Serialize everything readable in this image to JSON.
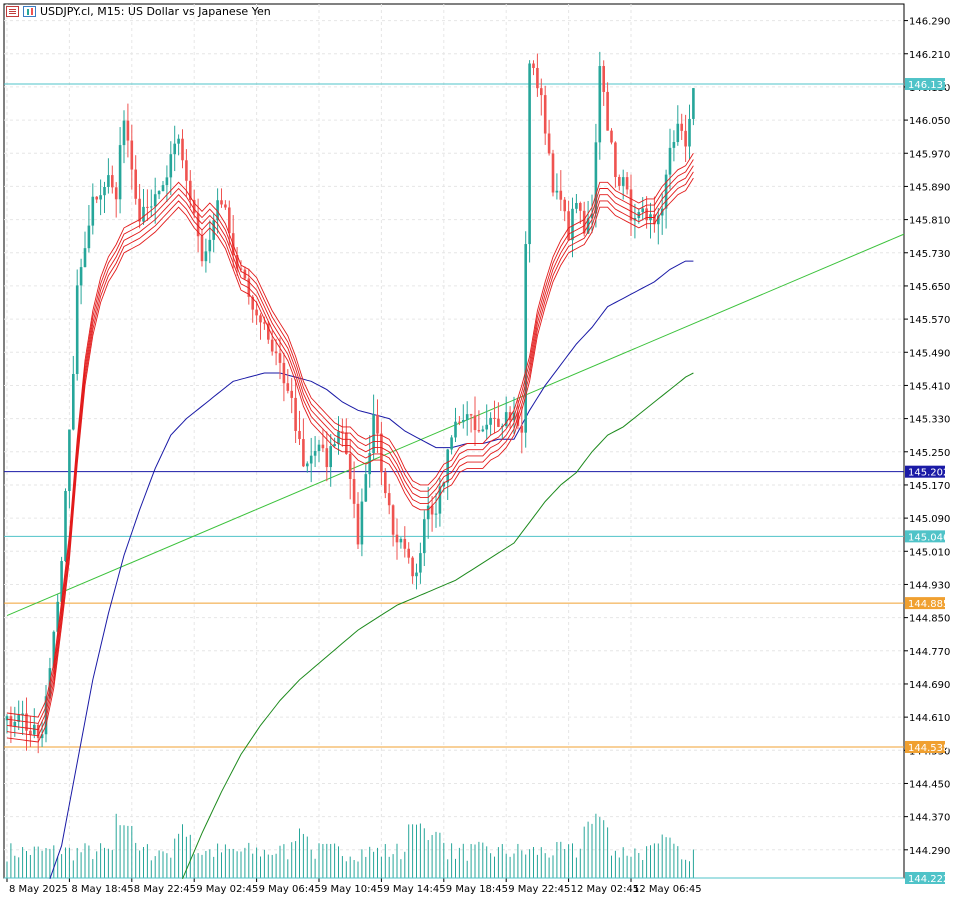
{
  "header": {
    "title": "USDJPY.cl, M15:  US Dollar vs Japanese Yen",
    "menu_icon": "list-icon",
    "chart_type_icon": "candlestick-icon"
  },
  "colors": {
    "up_candle": "#26a69a",
    "down_candle": "#ef5350",
    "ma_ribbon": "#e21b1b",
    "ma_blue": "#1a1aa6",
    "ma_green": "#1d8a1d",
    "trendline": "#3cc23c",
    "hline_cyan": "#4fc3c8",
    "hline_blue": "#1a1aa6",
    "hline_orange": "#f0a030",
    "volume": "#26a69a",
    "grid": "#e6e6e6"
  },
  "chart_data": {
    "type": "candlestick",
    "symbol": "USDJPY.cl",
    "timeframe": "M15",
    "description": "US Dollar vs Japanese Yen",
    "ylim": [
      144.222,
      146.33
    ],
    "y_ticks": [
      "146.290",
      "146.210",
      "146.130",
      "146.050",
      "145.970",
      "145.890",
      "145.810",
      "145.730",
      "145.650",
      "145.570",
      "145.490",
      "145.410",
      "145.330",
      "145.250",
      "145.170",
      "145.090",
      "145.010",
      "144.930",
      "144.850",
      "144.770",
      "144.690",
      "144.610",
      "144.530",
      "144.450",
      "144.370",
      "144.290"
    ],
    "x_ticks": [
      "8 May 2025",
      "8 May 18:45",
      "8 May 22:45",
      "9 May 02:45",
      "9 May 06:45",
      "9 May 10:45",
      "9 May 14:45",
      "9 May 18:45",
      "9 May 22:45",
      "12 May 02:45",
      "12 May 06:45"
    ],
    "price_levels": [
      {
        "label": "146.137",
        "value": 146.137,
        "color": "#4fc3c8"
      },
      {
        "label": "145.202",
        "value": 145.202,
        "color": "#1a1aa6"
      },
      {
        "label": "145.046",
        "value": 145.046,
        "color": "#4fc3c8"
      },
      {
        "label": "144.885",
        "value": 144.885,
        "color": "#f0a030"
      },
      {
        "label": "144.538",
        "value": 144.538,
        "color": "#f0a030"
      },
      {
        "label": "144.222",
        "value": 144.222,
        "color": "#4fc3c8"
      }
    ],
    "close_anchors": [
      [
        0,
        144.59
      ],
      [
        3,
        144.63
      ],
      [
        6,
        144.57
      ],
      [
        9,
        144.56
      ],
      [
        12,
        144.82
      ],
      [
        14,
        145.0
      ],
      [
        16,
        145.28
      ],
      [
        18,
        145.63
      ],
      [
        20,
        145.76
      ],
      [
        22,
        145.86
      ],
      [
        24,
        145.89
      ],
      [
        26,
        145.91
      ],
      [
        28,
        145.86
      ],
      [
        30,
        146.07
      ],
      [
        32,
        145.94
      ],
      [
        34,
        145.83
      ],
      [
        36,
        145.86
      ],
      [
        38,
        145.85
      ],
      [
        40,
        145.88
      ],
      [
        42,
        145.95
      ],
      [
        44,
        145.99
      ],
      [
        46,
        145.9
      ],
      [
        48,
        145.83
      ],
      [
        50,
        145.71
      ],
      [
        52,
        145.75
      ],
      [
        54,
        145.85
      ],
      [
        56,
        145.82
      ],
      [
        58,
        145.7
      ],
      [
        60,
        145.69
      ],
      [
        62,
        145.6
      ],
      [
        64,
        145.6
      ],
      [
        66,
        145.54
      ],
      [
        68,
        145.48
      ],
      [
        70,
        145.45
      ],
      [
        72,
        145.41
      ],
      [
        74,
        145.32
      ],
      [
        76,
        145.2
      ],
      [
        78,
        145.23
      ],
      [
        80,
        145.27
      ],
      [
        82,
        145.21
      ],
      [
        84,
        145.28
      ],
      [
        86,
        145.3
      ],
      [
        88,
        145.2
      ],
      [
        90,
        145.04
      ],
      [
        92,
        145.18
      ],
      [
        94,
        145.33
      ],
      [
        96,
        145.22
      ],
      [
        98,
        145.1
      ],
      [
        100,
        145.05
      ],
      [
        102,
        145.04
      ],
      [
        104,
        144.93
      ],
      [
        106,
        145.02
      ],
      [
        108,
        145.11
      ],
      [
        110,
        145.12
      ],
      [
        112,
        145.2
      ],
      [
        114,
        145.28
      ],
      [
        116,
        145.34
      ],
      [
        118,
        145.33
      ],
      [
        120,
        145.3
      ],
      [
        122,
        145.29
      ],
      [
        124,
        145.32
      ],
      [
        126,
        145.33
      ],
      [
        128,
        145.34
      ],
      [
        130,
        145.34
      ],
      [
        132,
        145.31
      ],
      [
        134,
        146.18
      ],
      [
        136,
        146.14
      ],
      [
        138,
        146.04
      ],
      [
        140,
        145.88
      ],
      [
        142,
        145.85
      ],
      [
        144,
        145.78
      ],
      [
        146,
        145.85
      ],
      [
        148,
        145.78
      ],
      [
        150,
        145.81
      ],
      [
        152,
        146.16
      ],
      [
        154,
        146.04
      ],
      [
        156,
        145.93
      ],
      [
        158,
        145.89
      ],
      [
        160,
        145.83
      ],
      [
        162,
        145.84
      ],
      [
        164,
        145.79
      ],
      [
        166,
        145.81
      ],
      [
        168,
        145.86
      ],
      [
        170,
        145.98
      ],
      [
        172,
        146.05
      ],
      [
        174,
        146.0
      ],
      [
        176,
        146.15
      ]
    ],
    "ribbon_anchors": [
      [
        0,
        144.59
      ],
      [
        8,
        144.58
      ],
      [
        10,
        144.62
      ],
      [
        12,
        144.71
      ],
      [
        14,
        144.86
      ],
      [
        16,
        145.02
      ],
      [
        18,
        145.25
      ],
      [
        20,
        145.44
      ],
      [
        22,
        145.56
      ],
      [
        24,
        145.64
      ],
      [
        26,
        145.69
      ],
      [
        28,
        145.72
      ],
      [
        30,
        145.76
      ],
      [
        34,
        145.78
      ],
      [
        38,
        145.81
      ],
      [
        40,
        145.83
      ],
      [
        42,
        145.85
      ],
      [
        44,
        145.87
      ],
      [
        46,
        145.85
      ],
      [
        48,
        145.82
      ],
      [
        50,
        145.8
      ],
      [
        52,
        145.82
      ],
      [
        54,
        145.8
      ],
      [
        56,
        145.77
      ],
      [
        58,
        145.72
      ],
      [
        60,
        145.67
      ],
      [
        62,
        145.66
      ],
      [
        64,
        145.64
      ],
      [
        66,
        145.6
      ],
      [
        68,
        145.56
      ],
      [
        70,
        145.53
      ],
      [
        72,
        145.5
      ],
      [
        74,
        145.45
      ],
      [
        76,
        145.39
      ],
      [
        78,
        145.35
      ],
      [
        80,
        145.33
      ],
      [
        82,
        145.31
      ],
      [
        84,
        145.29
      ],
      [
        86,
        145.28
      ],
      [
        88,
        145.28
      ],
      [
        90,
        145.26
      ],
      [
        92,
        145.25
      ],
      [
        94,
        145.26
      ],
      [
        96,
        145.26
      ],
      [
        98,
        145.25
      ],
      [
        100,
        145.22
      ],
      [
        102,
        145.18
      ],
      [
        104,
        145.15
      ],
      [
        106,
        145.14
      ],
      [
        108,
        145.14
      ],
      [
        110,
        145.16
      ],
      [
        112,
        145.19
      ],
      [
        114,
        145.2
      ],
      [
        116,
        145.23
      ],
      [
        118,
        145.24
      ],
      [
        120,
        145.24
      ],
      [
        122,
        145.24
      ],
      [
        124,
        145.26
      ],
      [
        126,
        145.27
      ],
      [
        128,
        145.29
      ],
      [
        130,
        145.32
      ],
      [
        132,
        145.38
      ],
      [
        134,
        145.45
      ],
      [
        136,
        145.56
      ],
      [
        138,
        145.63
      ],
      [
        140,
        145.69
      ],
      [
        142,
        145.73
      ],
      [
        144,
        145.76
      ],
      [
        146,
        145.77
      ],
      [
        148,
        145.78
      ],
      [
        150,
        145.81
      ],
      [
        152,
        145.87
      ],
      [
        154,
        145.87
      ],
      [
        156,
        145.85
      ],
      [
        158,
        145.84
      ],
      [
        160,
        145.83
      ],
      [
        162,
        145.82
      ],
      [
        164,
        145.83
      ],
      [
        166,
        145.83
      ],
      [
        168,
        145.86
      ],
      [
        170,
        145.88
      ],
      [
        172,
        145.9
      ],
      [
        174,
        145.91
      ],
      [
        176,
        145.94
      ]
    ],
    "ma_blue_anchors": [
      [
        11,
        144.22
      ],
      [
        14,
        144.3
      ],
      [
        18,
        144.5
      ],
      [
        22,
        144.7
      ],
      [
        26,
        144.86
      ],
      [
        30,
        145.0
      ],
      [
        34,
        145.11
      ],
      [
        38,
        145.21
      ],
      [
        42,
        145.29
      ],
      [
        46,
        145.33
      ],
      [
        50,
        145.36
      ],
      [
        54,
        145.39
      ],
      [
        58,
        145.42
      ],
      [
        62,
        145.43
      ],
      [
        66,
        145.44
      ],
      [
        70,
        145.44
      ],
      [
        74,
        145.43
      ],
      [
        78,
        145.42
      ],
      [
        82,
        145.4
      ],
      [
        86,
        145.37
      ],
      [
        90,
        145.35
      ],
      [
        94,
        145.34
      ],
      [
        98,
        145.33
      ],
      [
        102,
        145.3
      ],
      [
        106,
        145.28
      ],
      [
        110,
        145.26
      ],
      [
        114,
        145.26
      ],
      [
        118,
        145.27
      ],
      [
        122,
        145.27
      ],
      [
        126,
        145.28
      ],
      [
        130,
        145.28
      ],
      [
        134,
        145.35
      ],
      [
        138,
        145.41
      ],
      [
        142,
        145.46
      ],
      [
        146,
        145.51
      ],
      [
        150,
        145.55
      ],
      [
        154,
        145.6
      ],
      [
        158,
        145.62
      ],
      [
        162,
        145.64
      ],
      [
        166,
        145.66
      ],
      [
        170,
        145.69
      ],
      [
        174,
        145.71
      ],
      [
        176,
        145.71
      ]
    ],
    "ma_green_anchors": [
      [
        45,
        144.22
      ],
      [
        50,
        144.33
      ],
      [
        55,
        144.43
      ],
      [
        60,
        144.52
      ],
      [
        65,
        144.59
      ],
      [
        70,
        144.65
      ],
      [
        75,
        144.7
      ],
      [
        80,
        144.74
      ],
      [
        85,
        144.78
      ],
      [
        90,
        144.82
      ],
      [
        95,
        144.85
      ],
      [
        100,
        144.88
      ],
      [
        105,
        144.9
      ],
      [
        110,
        144.92
      ],
      [
        115,
        144.94
      ],
      [
        120,
        144.97
      ],
      [
        125,
        145.0
      ],
      [
        130,
        145.03
      ],
      [
        134,
        145.08
      ],
      [
        138,
        145.13
      ],
      [
        142,
        145.17
      ],
      [
        146,
        145.2
      ],
      [
        150,
        145.25
      ],
      [
        154,
        145.29
      ],
      [
        158,
        145.31
      ],
      [
        162,
        145.34
      ],
      [
        166,
        145.37
      ],
      [
        170,
        145.4
      ],
      [
        174,
        145.43
      ],
      [
        176,
        145.44
      ]
    ],
    "trendline": {
      "from": [
        0,
        144.855
      ],
      "to": [
        230,
        145.775
      ]
    },
    "volume": {
      "base": 60,
      "spikes": [
        [
          30,
          120
        ],
        [
          45,
          100
        ],
        [
          75,
          90
        ],
        [
          105,
          100
        ],
        [
          110,
          90
        ],
        [
          150,
          110
        ],
        [
          152,
          130
        ],
        [
          170,
          80
        ]
      ]
    },
    "bar_count": 177
  }
}
